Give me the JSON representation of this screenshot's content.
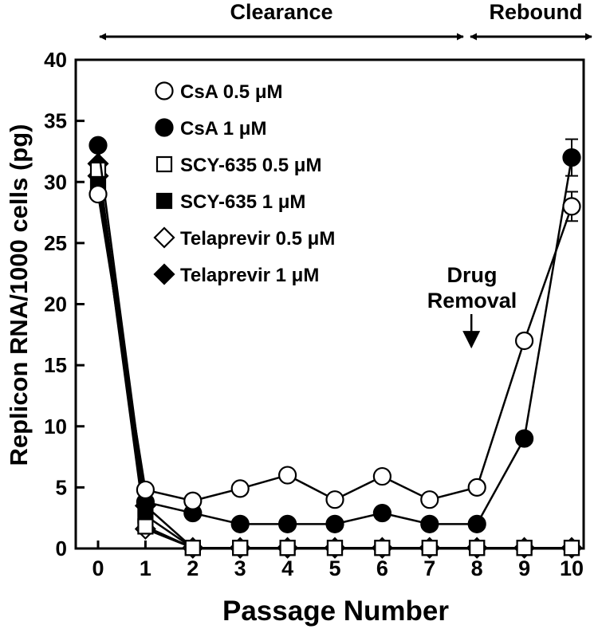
{
  "chart_data": {
    "type": "line",
    "xlabel": "Passage Number",
    "ylabel": "Replicon RNA/1000 cells (pg)",
    "xlim": [
      0,
      10
    ],
    "ylim": [
      0,
      40
    ],
    "xticks": [
      0,
      1,
      2,
      3,
      4,
      5,
      6,
      7,
      8,
      9,
      10
    ],
    "yticks": [
      0,
      5,
      10,
      15,
      20,
      25,
      30,
      35,
      40
    ],
    "x": [
      0,
      1,
      2,
      3,
      4,
      5,
      6,
      7,
      8,
      9,
      10
    ],
    "phases": [
      {
        "label": "Clearance",
        "x_start": 0,
        "x_end": 8
      },
      {
        "label": "Rebound",
        "x_start": 8,
        "x_end": 10
      }
    ],
    "annotation": {
      "line1": "Drug",
      "line2": "Removal",
      "x": 8,
      "y_from": 24,
      "y_to": 16.5
    },
    "series": [
      {
        "name": "CsA 0.5 μM",
        "marker": "circle",
        "fill": "#ffffff",
        "values": [
          29,
          4.8,
          3.9,
          4.9,
          6,
          4,
          5.9,
          4,
          5,
          17,
          28
        ],
        "error": [
          0,
          0,
          0,
          0,
          0,
          0,
          0,
          0,
          0,
          0,
          1.2
        ]
      },
      {
        "name": "CsA 1 μM",
        "marker": "circle",
        "fill": "#000000",
        "values": [
          33,
          3.8,
          2.9,
          2,
          2,
          2,
          2.9,
          2,
          2,
          9,
          32
        ],
        "error": [
          0,
          0,
          0,
          0,
          0,
          0,
          0,
          0,
          0,
          0,
          1.5
        ]
      },
      {
        "name": "SCY-635 0.5 μM",
        "marker": "square",
        "fill": "#ffffff",
        "values": [
          31,
          1.8,
          0.05,
          0.05,
          0.05,
          0.05,
          0.05,
          0.05,
          0.05,
          0.05,
          0.05
        ]
      },
      {
        "name": "SCY-635 1 μM",
        "marker": "square",
        "fill": "#000000",
        "values": [
          30,
          2.7,
          0.05,
          0.05,
          0.05,
          0.05,
          0.05,
          0.05,
          0.05,
          0.05,
          0.05
        ]
      },
      {
        "name": "Telaprevir 0.5 μM",
        "marker": "diamond",
        "fill": "#ffffff",
        "values": [
          30.5,
          1.6,
          0.05,
          0.05,
          0.05,
          0.05,
          0.05,
          0.05,
          0.05,
          0.05,
          0.05
        ]
      },
      {
        "name": "Telaprevir 1 μM",
        "marker": "diamond",
        "fill": "#000000",
        "values": [
          31.5,
          3.5,
          0.05,
          0.05,
          0.05,
          0.05,
          0.05,
          0.05,
          0.05,
          0.05,
          0.05
        ]
      }
    ]
  }
}
